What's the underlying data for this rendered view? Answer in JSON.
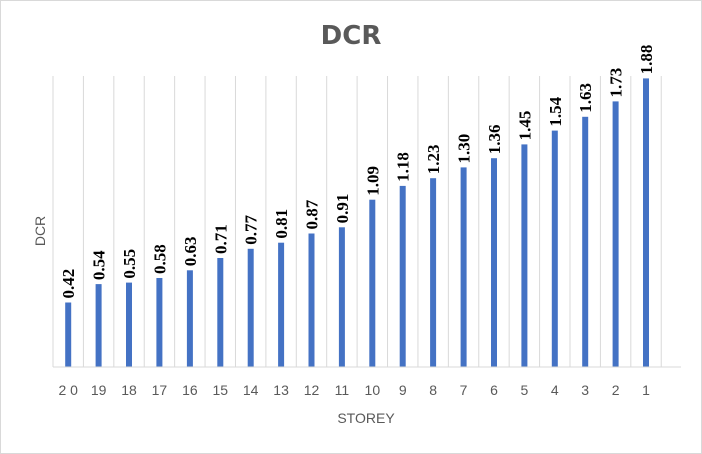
{
  "chart_data": {
    "type": "bar",
    "title": "DCR",
    "xlabel": "STOREY",
    "ylabel": "DCR",
    "categories": [
      "20",
      "19",
      "18",
      "17",
      "16",
      "15",
      "14",
      "13",
      "12",
      "11",
      "10",
      "9",
      "8",
      "7",
      "6",
      "5",
      "4",
      "3",
      "2",
      "1"
    ],
    "series": [
      {
        "values": [
          0.42,
          0.54,
          0.55,
          0.58,
          0.63,
          0.71,
          0.77,
          0.81,
          0.87,
          0.91,
          1.09,
          1.18,
          1.23,
          1.3,
          1.36,
          1.45,
          1.54,
          1.63,
          1.73,
          1.88
        ],
        "labels": [
          "0.42",
          "0.54",
          "0.55",
          "0.58",
          "0.63",
          "0.71",
          "0.77",
          "0.81",
          "0.87",
          "0.91",
          "1.09",
          "1.18",
          "1.23",
          "1.30",
          "1.36",
          "1.45",
          "1.54",
          "1.63",
          "1.73",
          "1.88"
        ]
      }
    ],
    "ylim": [
      0,
      2.0
    ],
    "grid": "vertical",
    "legend": "none",
    "bar_color": "#4472c4",
    "grid_color": "#d9d9d9",
    "axis_color": "#d9d9d9"
  }
}
